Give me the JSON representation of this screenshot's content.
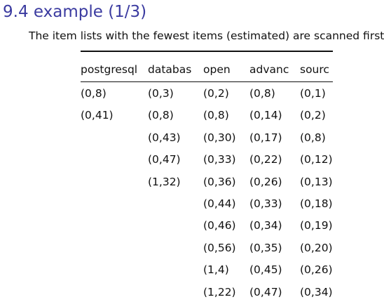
{
  "slide": {
    "title": "9.4 example (1/3)",
    "subtitle": "The item lists with the fewest items (estimated) are scanned first."
  },
  "table": {
    "columns": [
      {
        "header": "postgresql",
        "cells": [
          "(0,8)",
          "(0,41)"
        ]
      },
      {
        "header": "databas",
        "cells": [
          "(0,3)",
          "(0,8)",
          "(0,43)",
          "(0,47)",
          "(1,32)"
        ]
      },
      {
        "header": "open",
        "cells": [
          "(0,2)",
          "(0,8)",
          "(0,30)",
          "(0,33)",
          "(0,36)",
          "(0,44)",
          "(0,46)",
          "(0,56)",
          "(1,4)",
          "(1,22)"
        ]
      },
      {
        "header": "advanc",
        "cells": [
          "(0,8)",
          "(0,14)",
          "(0,17)",
          "(0,22)",
          "(0,26)",
          "(0,33)",
          "(0,34)",
          "(0,35)",
          "(0,45)",
          "(0,47)"
        ]
      },
      {
        "header": "sourc",
        "cells": [
          "(0,1)",
          "(0,2)",
          "(0,8)",
          "(0,12)",
          "(0,13)",
          "(0,18)",
          "(0,19)",
          "(0,20)",
          "(0,26)",
          "(0,34)"
        ]
      }
    ]
  }
}
